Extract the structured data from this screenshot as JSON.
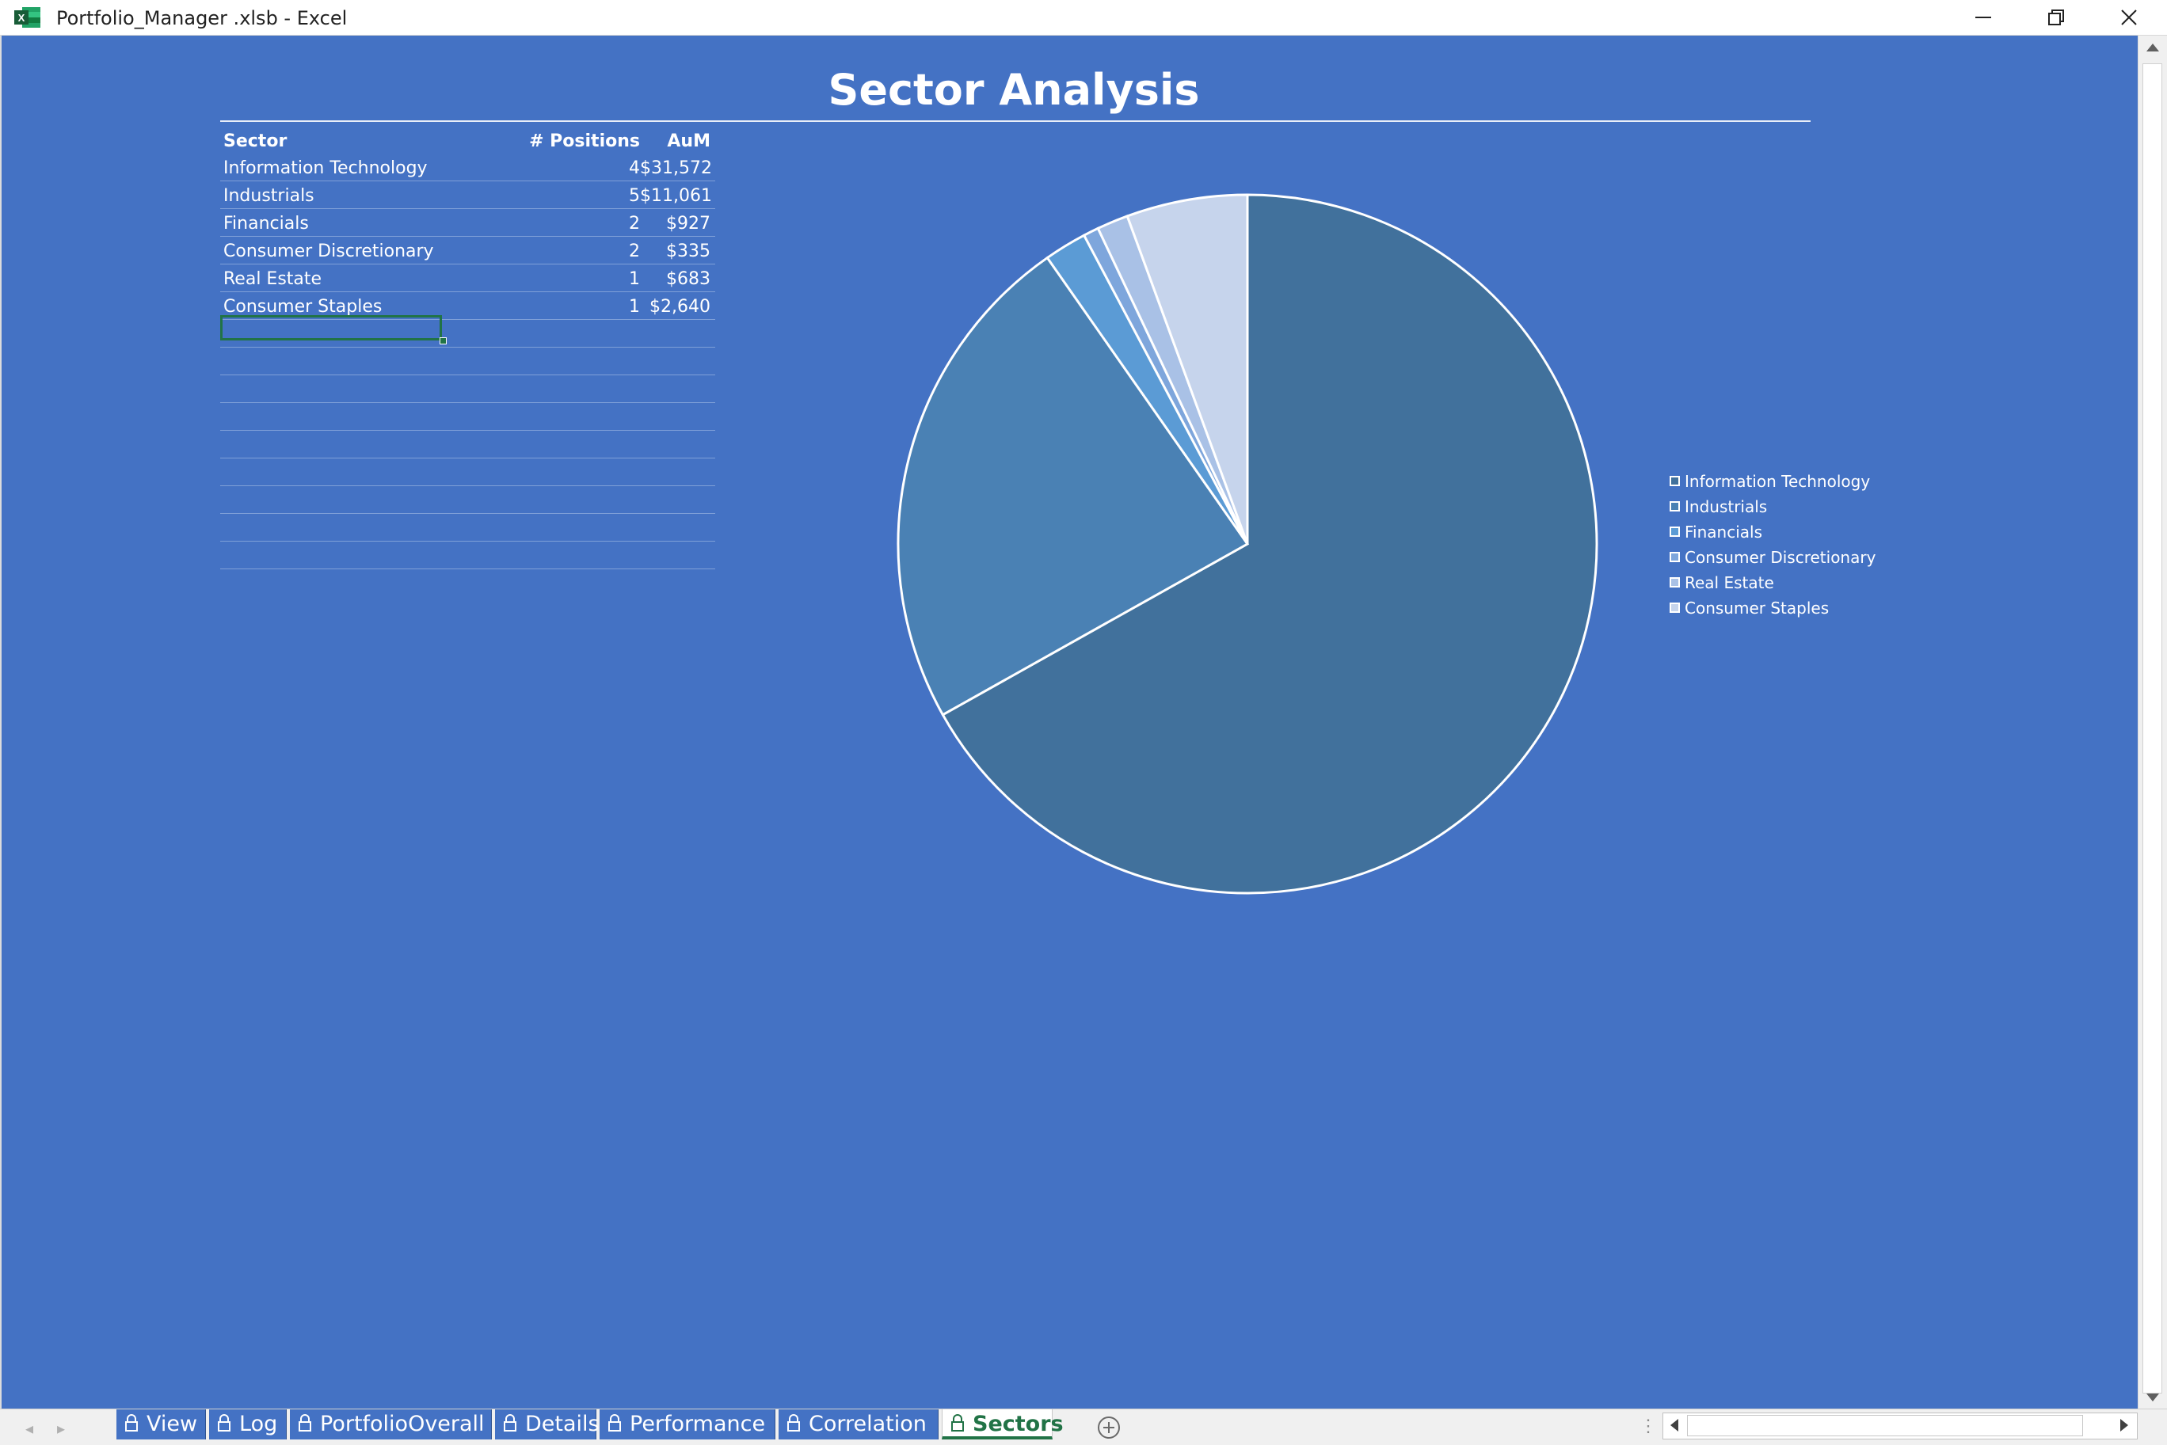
{
  "window": {
    "title": "Portfolio_Manager .xlsb - Excel",
    "app_icon": "excel-icon",
    "controls": [
      "minimize-icon",
      "restore-icon",
      "close-icon"
    ]
  },
  "sheet": {
    "title": "Sector Analysis",
    "background": "#4472c4",
    "table": {
      "headers": {
        "sector": "Sector",
        "positions": "# Positions",
        "aum": "AuM"
      },
      "rows": [
        {
          "sector": "Information Technology",
          "positions": "4",
          "aum": "$31,572"
        },
        {
          "sector": "Industrials",
          "positions": "5",
          "aum": "$11,061"
        },
        {
          "sector": "Financials",
          "positions": "2",
          "aum": "$927"
        },
        {
          "sector": "Consumer Discretionary",
          "positions": "2",
          "aum": "$335"
        },
        {
          "sector": "Real Estate",
          "positions": "1",
          "aum": "$683"
        },
        {
          "sector": "Consumer Staples",
          "positions": "1",
          "aum": "$2,640"
        }
      ]
    }
  },
  "chart_data": {
    "type": "pie",
    "title": "",
    "categories": [
      "Information Technology",
      "Industrials",
      "Financials",
      "Consumer Discretionary",
      "Real Estate",
      "Consumer Staples"
    ],
    "values": [
      31572,
      11061,
      927,
      335,
      683,
      2640
    ],
    "colors": [
      "#41719c",
      "#4a81b4",
      "#5b9bd5",
      "#7ea6dc",
      "#a9c1e6",
      "#c6d4ec"
    ],
    "legend_position": "right",
    "start_angle": "12 o'clock",
    "direction": "clockwise"
  },
  "sheet_tabs": {
    "tabs": [
      {
        "label": "View",
        "active": false
      },
      {
        "label": "Log",
        "active": false
      },
      {
        "label": "PortfolioOverall",
        "active": false
      },
      {
        "label": "Details",
        "active": false
      },
      {
        "label": "Performance",
        "active": false
      },
      {
        "label": "Correlation",
        "active": false
      },
      {
        "label": "Sectors",
        "active": true
      }
    ],
    "add_icon": "plus-circle-icon",
    "tab_icon": "lock-icon",
    "active_color": "#217346"
  }
}
